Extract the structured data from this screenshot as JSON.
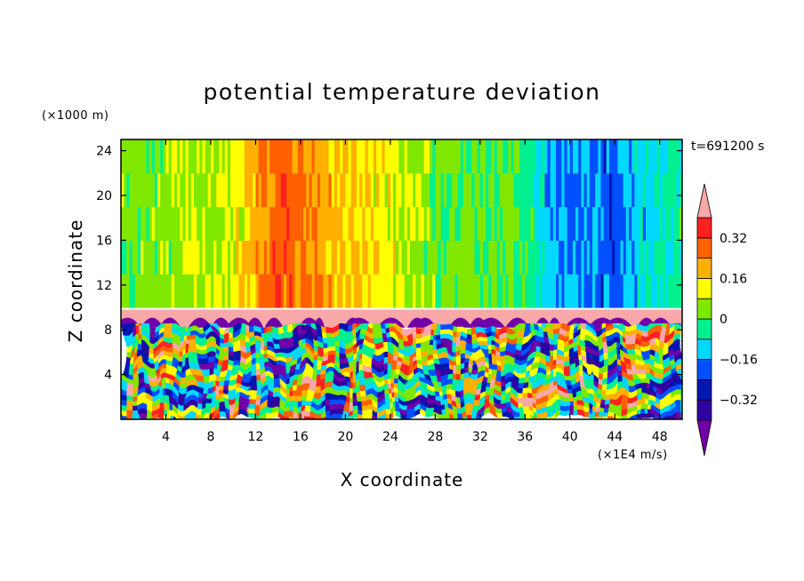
{
  "chart_data": {
    "type": "heatmap",
    "title": "potential temperature deviation",
    "xlabel": "X coordinate",
    "ylabel": "Z coordinate",
    "x_unit": "(×1E4 m/s)",
    "y_unit": "(×1000 m)",
    "time_label": "t=691200 s",
    "xlim": [
      0,
      50
    ],
    "ylim": [
      0,
      25
    ],
    "x_ticks": [
      4,
      8,
      12,
      16,
      20,
      24,
      28,
      32,
      36,
      40,
      44,
      48
    ],
    "y_ticks": [
      4,
      8,
      12,
      16,
      20,
      24
    ],
    "colorbar": {
      "levels": [
        -0.4,
        -0.32,
        -0.24,
        -0.16,
        -0.08,
        0,
        0.08,
        0.16,
        0.24,
        0.32,
        0.4
      ],
      "tick_values": [
        0.32,
        0.16,
        0,
        -0.16,
        -0.32
      ],
      "tick_labels": [
        "0.32",
        "0.16",
        "0",
        "−0.16",
        "−0.32"
      ],
      "colors": [
        "#7000a8",
        "#3000a0",
        "#0018b0",
        "#0050ff",
        "#00d8ff",
        "#00f090",
        "#80e800",
        "#ffff00",
        "#ffb000",
        "#ff6000",
        "#ff2020",
        "#f8a8a8"
      ],
      "extend": "both"
    },
    "field_description": {
      "upper_layer_z": [
        10,
        25
      ],
      "upper_layer_values_by_x": [
        [
          0,
          0.02
        ],
        [
          10,
          0.09
        ],
        [
          14,
          0.3
        ],
        [
          16,
          0.25
        ],
        [
          20,
          0.18
        ],
        [
          25,
          0.1
        ],
        [
          28,
          0.02
        ],
        [
          36,
          0.0
        ],
        [
          38,
          -0.12
        ],
        [
          44,
          -0.2
        ],
        [
          46,
          -0.12
        ],
        [
          50,
          -0.05
        ]
      ],
      "inversion_band_z": [
        8.2,
        9.8
      ],
      "inversion_band_value": ">0.4",
      "lower_layer_z": [
        0,
        8.2
      ],
      "lower_layer_value_range": [
        -0.4,
        0.4
      ]
    }
  }
}
